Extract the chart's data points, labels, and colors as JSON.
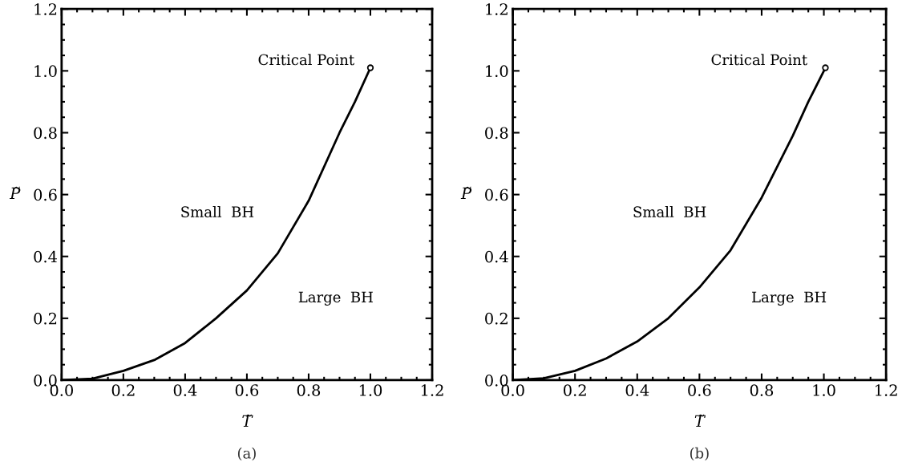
{
  "chart_data": [
    {
      "type": "line",
      "xlabel": "T̃",
      "ylabel": "P̃",
      "xlim": [
        0,
        1.2
      ],
      "ylim": [
        0,
        1.2
      ],
      "xticks": [
        "0.0",
        0.2,
        0.4,
        0.6,
        0.8,
        "1.0",
        1.2
      ],
      "yticks": [
        "0.0",
        0.2,
        0.4,
        0.6,
        0.8,
        "1.0",
        1.2
      ],
      "grid": false,
      "legend": false,
      "series": [
        {
          "color": "#000000",
          "x": [
            0,
            0.1,
            0.2,
            0.3,
            0.4,
            0.5,
            0.6,
            0.7,
            0.8,
            0.9,
            0.95,
            1.0
          ],
          "values": [
            0,
            0.005,
            0.03,
            0.065,
            0.12,
            0.2,
            0.29,
            0.41,
            0.58,
            0.8,
            0.9,
            1.01
          ]
        },
        {
          "type": "scatter",
          "marker": "circle",
          "color": "#000000",
          "x": [
            1.0
          ],
          "values": [
            1.01
          ]
        }
      ],
      "annotations": [
        "Critical Point",
        "Small  BH",
        "Large  BH",
        "(a)"
      ]
    },
    {
      "type": "line",
      "xlabel": "T̃",
      "ylabel": "P̃",
      "xlim": [
        0,
        1.2
      ],
      "ylim": [
        0,
        1.2
      ],
      "xticks": [
        "0.0",
        0.2,
        0.4,
        0.6,
        0.8,
        "1.0",
        1.2
      ],
      "yticks": [
        "0.0",
        0.2,
        0.4,
        0.6,
        0.8,
        "1.0",
        1.2
      ],
      "grid": false,
      "legend": false,
      "series": [
        {
          "color": "#000000",
          "x": [
            0,
            0.1,
            0.2,
            0.3,
            0.4,
            0.5,
            0.6,
            0.7,
            0.8,
            0.9,
            0.95,
            1.005
          ],
          "values": [
            0,
            0.006,
            0.03,
            0.07,
            0.125,
            0.2,
            0.3,
            0.42,
            0.59,
            0.79,
            0.9,
            1.01
          ]
        },
        {
          "type": "scatter",
          "marker": "circle",
          "color": "#000000",
          "x": [
            1.005
          ],
          "values": [
            1.01
          ]
        }
      ],
      "annotations": [
        "Critical Point",
        "Small  BH",
        "Large  BH",
        "(b)"
      ]
    }
  ]
}
